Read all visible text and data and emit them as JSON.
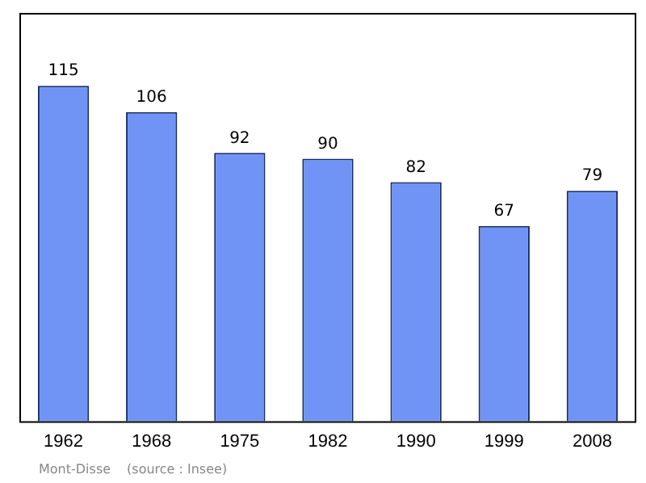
{
  "chart_data": {
    "type": "bar",
    "categories": [
      "1962",
      "1968",
      "1975",
      "1982",
      "1990",
      "1999",
      "2008"
    ],
    "values": [
      115,
      106,
      92,
      90,
      82,
      67,
      79
    ],
    "color": "#6f94f5",
    "data_labels": true,
    "relative": false,
    "grid": false,
    "legend": false,
    "annotations": [
      "Mont-Disse",
      "(source : Insee)"
    ]
  }
}
